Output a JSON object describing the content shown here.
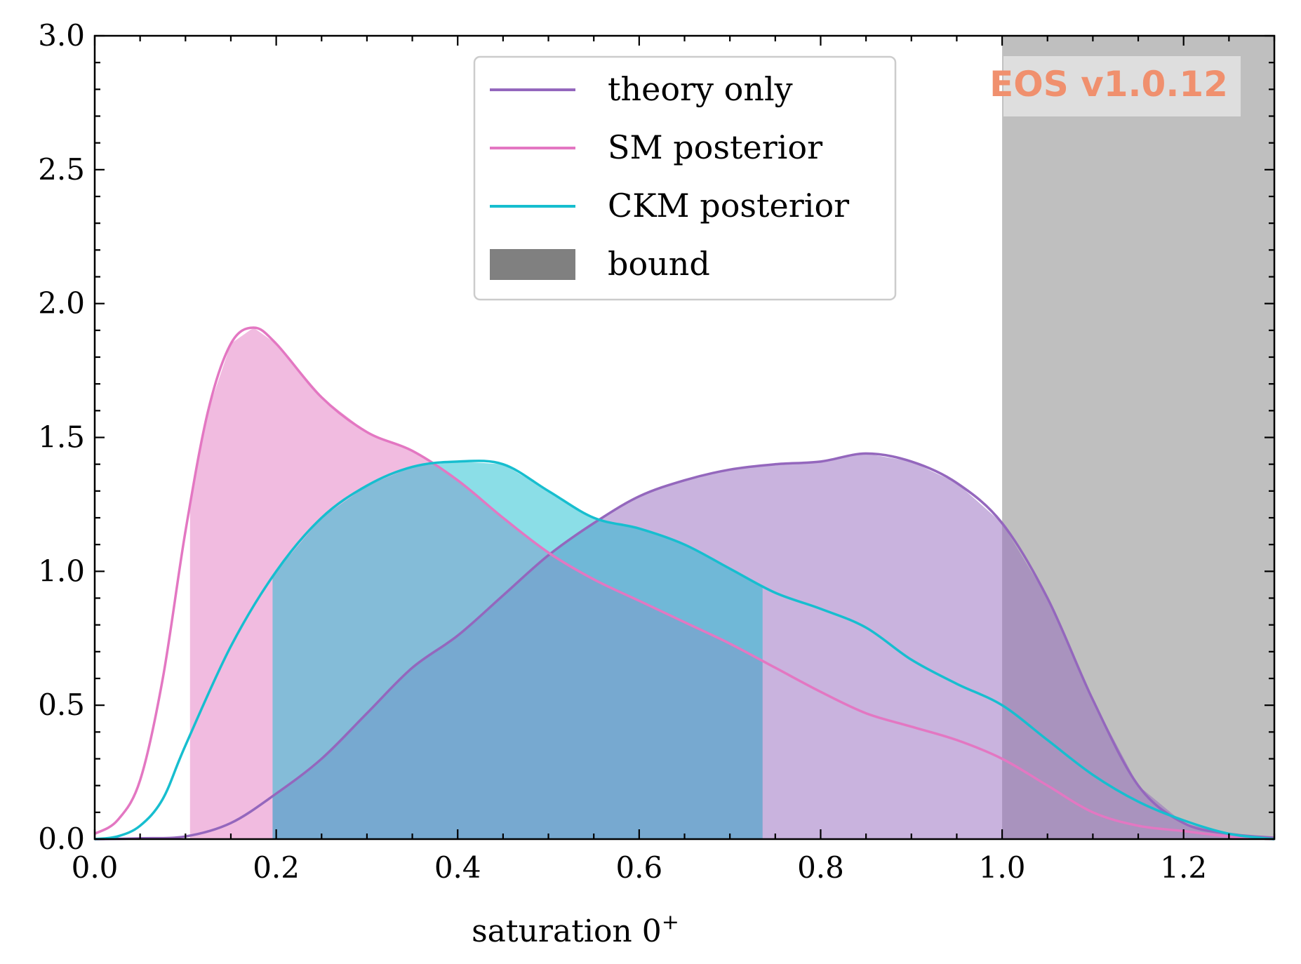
{
  "chart_data": {
    "type": "line",
    "xlabel": "saturation 0",
    "xlabel_superscript": "+",
    "ylabel": "",
    "xlim": [
      0.0,
      1.3
    ],
    "ylim": [
      0.0,
      3.0
    ],
    "x_ticks": [
      0.0,
      0.2,
      0.4,
      0.6,
      0.8,
      1.0,
      1.2
    ],
    "x_tick_labels": [
      "0.0",
      "0.2",
      "0.4",
      "0.6",
      "0.8",
      "1.0",
      "1.2"
    ],
    "y_ticks": [
      0.0,
      0.5,
      1.0,
      1.5,
      2.0,
      2.5,
      3.0
    ],
    "y_tick_labels": [
      "0.0",
      "0.5",
      "1.0",
      "1.5",
      "2.0",
      "2.5",
      "3.0"
    ],
    "legend_position": "top-center",
    "grid": false,
    "series": [
      {
        "name": "theory only",
        "color": "#9467bd",
        "fill_interval": [
          0.196,
          1.3
        ],
        "x": [
          0.0,
          0.05,
          0.1,
          0.15,
          0.2,
          0.25,
          0.3,
          0.35,
          0.4,
          0.45,
          0.5,
          0.55,
          0.6,
          0.65,
          0.7,
          0.75,
          0.8,
          0.85,
          0.9,
          0.95,
          1.0,
          1.05,
          1.1,
          1.15,
          1.2,
          1.25,
          1.3
        ],
        "y": [
          0.0,
          0.003,
          0.01,
          0.06,
          0.17,
          0.3,
          0.47,
          0.64,
          0.76,
          0.91,
          1.06,
          1.18,
          1.28,
          1.34,
          1.38,
          1.4,
          1.41,
          1.44,
          1.41,
          1.33,
          1.18,
          0.9,
          0.52,
          0.2,
          0.06,
          0.02,
          0.005
        ]
      },
      {
        "name": "SM posterior",
        "color": "#e377c2",
        "fill_interval": [
          0.105,
          0.736
        ],
        "x": [
          0.0,
          0.025,
          0.05,
          0.075,
          0.1,
          0.125,
          0.15,
          0.175,
          0.2,
          0.25,
          0.3,
          0.35,
          0.4,
          0.45,
          0.5,
          0.55,
          0.6,
          0.65,
          0.7,
          0.75,
          0.8,
          0.85,
          0.9,
          0.95,
          1.0,
          1.05,
          1.1,
          1.15,
          1.2,
          1.25,
          1.3
        ],
        "y": [
          0.02,
          0.07,
          0.22,
          0.6,
          1.15,
          1.6,
          1.85,
          1.91,
          1.85,
          1.65,
          1.52,
          1.45,
          1.34,
          1.2,
          1.07,
          0.97,
          0.89,
          0.81,
          0.73,
          0.64,
          0.55,
          0.47,
          0.42,
          0.37,
          0.3,
          0.2,
          0.1,
          0.05,
          0.03,
          0.01,
          0.0
        ]
      },
      {
        "name": "CKM posterior",
        "color": "#17becf",
        "fill_interval": [
          0.196,
          0.736
        ],
        "x": [
          0.0,
          0.025,
          0.05,
          0.075,
          0.1,
          0.15,
          0.2,
          0.25,
          0.3,
          0.35,
          0.4,
          0.45,
          0.5,
          0.55,
          0.6,
          0.65,
          0.7,
          0.75,
          0.8,
          0.85,
          0.9,
          0.95,
          1.0,
          1.05,
          1.1,
          1.15,
          1.2,
          1.25,
          1.3
        ],
        "y": [
          0.0,
          0.01,
          0.05,
          0.15,
          0.35,
          0.72,
          1.0,
          1.2,
          1.32,
          1.39,
          1.41,
          1.4,
          1.3,
          1.2,
          1.16,
          1.1,
          1.01,
          0.92,
          0.86,
          0.79,
          0.67,
          0.58,
          0.5,
          0.37,
          0.24,
          0.14,
          0.07,
          0.02,
          0.0
        ]
      }
    ],
    "bound": {
      "name": "bound",
      "color": "#808080",
      "x_range": [
        1.0,
        1.3
      ]
    }
  },
  "watermark": {
    "text": "EOS v1.0.12",
    "color": "#f0906e"
  }
}
